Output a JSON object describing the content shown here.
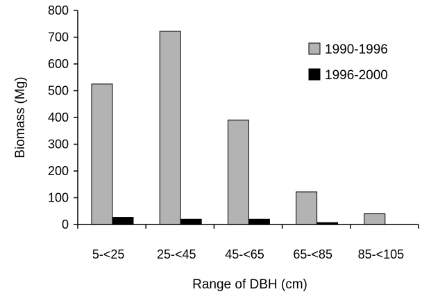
{
  "chart_data": {
    "type": "bar",
    "title": "",
    "xlabel": "Range of DBH (cm)",
    "ylabel": "Biomass (Mg)",
    "ylim": [
      0,
      800
    ],
    "yticks": [
      "0",
      "100",
      "200",
      "300",
      "400",
      "500",
      "600",
      "700",
      "800"
    ],
    "categories": [
      "5-<25",
      "25-<45",
      "45-<65",
      "65-<85",
      "85-<105"
    ],
    "series": [
      {
        "name": "1990-1996",
        "color": "#b3b3b3",
        "values": [
          525,
          722,
          390,
          122,
          40
        ]
      },
      {
        "name": "1996-2000",
        "color": "#000000",
        "values": [
          27,
          20,
          20,
          7,
          0
        ]
      }
    ],
    "legend_position": "top-right",
    "grid": false
  }
}
